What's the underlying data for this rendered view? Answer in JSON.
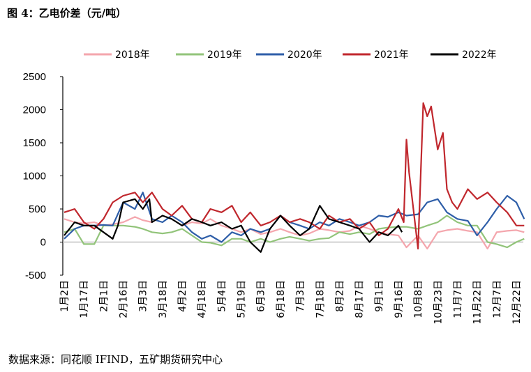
{
  "title": "图 4：乙电价差（元/吨）",
  "source": "数据来源：同花顺 IFIND，五矿期货研究中心",
  "chart_data": {
    "type": "line",
    "ylim": [
      -500,
      2500
    ],
    "yticks": [
      -500,
      0,
      500,
      1000,
      1500,
      2000,
      2500
    ],
    "categories": [
      "1月2日",
      "1月17日",
      "2月1日",
      "2月16日",
      "3月3日",
      "3月18日",
      "4月2日",
      "4月18日",
      "5月4日",
      "5月19日",
      "6月3日",
      "6月18日",
      "7月3日",
      "7月18日",
      "8月2日",
      "8月17日",
      "9月1日",
      "9月16日",
      "10月8日",
      "10月23日",
      "11月7日",
      "11月22日",
      "12月7日",
      "12月22日"
    ],
    "legend": "top",
    "series": [
      {
        "name": "2018年",
        "color": "#f4a6ad",
        "x": [
          "1月2日",
          "1月10日",
          "1月17日",
          "1月25日",
          "2月1日",
          "2月8日",
          "2月16日",
          "2月25日",
          "3月3日",
          "3月10日",
          "3月18日",
          "3月25日",
          "4月2日",
          "4月10日",
          "4月18日",
          "4月25日",
          "5月4日",
          "5月12日",
          "5月19日",
          "5月26日",
          "6月3日",
          "6月10日",
          "6月18日",
          "6月25日",
          "7月3日",
          "7月10日",
          "7月18日",
          "7月25日",
          "8月2日",
          "8月10日",
          "8月17日",
          "8月25日",
          "9月1日",
          "9月8日",
          "9月16日",
          "9月25日",
          "10月8日",
          "10月15日",
          "10月23日",
          "10月30日",
          "11月7日",
          "11月15日",
          "11月22日",
          "11月30日",
          "12月7日",
          "12月15日",
          "12月22日",
          "12月28日"
        ],
        "values": [
          350,
          300,
          280,
          300,
          250,
          270,
          300,
          380,
          330,
          300,
          400,
          350,
          250,
          300,
          280,
          350,
          250,
          200,
          150,
          200,
          120,
          150,
          200,
          150,
          100,
          130,
          200,
          180,
          150,
          170,
          250,
          200,
          150,
          120,
          100,
          -80,
          100,
          -100,
          150,
          180,
          200,
          170,
          150,
          -100,
          150,
          170,
          180,
          150
        ]
      },
      {
        "name": "2019年",
        "color": "#92c47a",
        "x": [
          "1月2日",
          "1月10日",
          "1月17日",
          "1月25日",
          "2月1日",
          "2月8日",
          "2月16日",
          "2月25日",
          "3月3日",
          "3月10日",
          "3月18日",
          "3月25日",
          "4月2日",
          "4月10日",
          "4月18日",
          "4月25日",
          "5月4日",
          "5月12日",
          "5月19日",
          "5月26日",
          "6月3日",
          "6月10日",
          "6月18日",
          "6月25日",
          "7月3日",
          "7月10日",
          "7月18日",
          "7月25日",
          "8月2日",
          "8月10日",
          "8月17日",
          "8月25日",
          "9月1日",
          "9月8日",
          "9月16日",
          "9月25日",
          "10月8日",
          "10月15日",
          "10月23日",
          "10月30日",
          "11月7日",
          "11月15日",
          "11月22日",
          "11月30日",
          "12月7日",
          "12月15日",
          "12月22日",
          "12月28日"
        ],
        "values": [
          150,
          200,
          -30,
          -30,
          250,
          250,
          250,
          230,
          200,
          150,
          130,
          150,
          200,
          100,
          0,
          -10,
          -50,
          50,
          50,
          0,
          50,
          0,
          50,
          80,
          50,
          20,
          50,
          60,
          150,
          120,
          150,
          120,
          200,
          220,
          230,
          230,
          200,
          250,
          300,
          400,
          300,
          250,
          250,
          0,
          -30,
          -80,
          0,
          50
        ]
      },
      {
        "name": "2020年",
        "color": "#2e5ea8",
        "x": [
          "1月2日",
          "1月10日",
          "1月17日",
          "1月25日",
          "2月1日",
          "2月8日",
          "2月16日",
          "2月25日",
          "3月3日",
          "3月10日",
          "3月18日",
          "3月25日",
          "4月2日",
          "4月10日",
          "4月18日",
          "4月25日",
          "5月4日",
          "5月12日",
          "5月19日",
          "5月26日",
          "6月3日",
          "6月10日",
          "6月18日",
          "6月25日",
          "7月3日",
          "7月10日",
          "7月18日",
          "7月25日",
          "8月2日",
          "8月10日",
          "8月17日",
          "8月25日",
          "9月1日",
          "9月8日",
          "9月16日",
          "9月25日",
          "10月8日",
          "10月15日",
          "10月23日",
          "10月30日",
          "11月7日",
          "11月15日",
          "11月22日",
          "11月30日",
          "12月7日",
          "12月15日",
          "12月22日",
          "12月28日"
        ],
        "values": [
          50,
          200,
          250,
          250,
          260,
          250,
          600,
          500,
          750,
          350,
          300,
          400,
          300,
          150,
          50,
          100,
          0,
          150,
          100,
          200,
          150,
          200,
          400,
          300,
          250,
          200,
          300,
          250,
          350,
          300,
          250,
          300,
          400,
          380,
          450,
          400,
          420,
          600,
          650,
          450,
          350,
          320,
          100,
          300,
          500,
          700,
          600,
          350
        ]
      },
      {
        "name": "2021年",
        "color": "#c0272d",
        "x": [
          "1月2日",
          "1月10日",
          "1月17日",
          "1月25日",
          "2月1日",
          "2月8日",
          "2月16日",
          "2月25日",
          "3月3日",
          "3月10日",
          "3月18日",
          "3月25日",
          "4月2日",
          "4月10日",
          "4月18日",
          "4月25日",
          "5月4日",
          "5月12日",
          "5月19日",
          "5月26日",
          "6月3日",
          "6月10日",
          "6月18日",
          "6月25日",
          "7月3日",
          "7月10日",
          "7月18日",
          "7月25日",
          "8月2日",
          "8月10日",
          "8月17日",
          "8月25日",
          "9月1日",
          "9月8日",
          "9月16日",
          "9月22日",
          "9月25日",
          "9月28日",
          "10月8日",
          "10月12日",
          "10月15日",
          "10月18日",
          "10月23日",
          "10月27日",
          "10月30日",
          "11月3日",
          "11月7日",
          "11月15日",
          "11月22日",
          "11月30日",
          "12月7日",
          "12月15日",
          "12月22日",
          "12月28日"
        ],
        "values": [
          450,
          500,
          300,
          200,
          350,
          600,
          700,
          750,
          600,
          750,
          500,
          400,
          550,
          350,
          300,
          500,
          450,
          550,
          300,
          450,
          250,
          300,
          400,
          300,
          350,
          300,
          200,
          400,
          300,
          350,
          200,
          300,
          100,
          200,
          500,
          300,
          1550,
          1050,
          -100,
          2100,
          1900,
          2050,
          1400,
          1650,
          800,
          600,
          500,
          800,
          650,
          750,
          600,
          450,
          250,
          250
        ]
      },
      {
        "name": "2022年",
        "color": "#000000",
        "x": [
          "1月2日",
          "1月10日",
          "1月17日",
          "1月25日",
          "2月1日",
          "2月8日",
          "2月12日",
          "2月16日",
          "2月25日",
          "3月3日",
          "3月8日",
          "3月10日",
          "3月18日",
          "3月25日",
          "4月2日",
          "4月10日",
          "4月18日",
          "4月25日",
          "5月4日",
          "5月12日",
          "5月19日",
          "5月26日",
          "6月3日",
          "6月10日",
          "6月18日",
          "6月25日",
          "7月3日",
          "7月10日",
          "7月18日",
          "7月25日",
          "8月2日",
          "8月10日",
          "8月17日",
          "8月25日",
          "9月1日",
          "9月8日",
          "9月16日",
          "9月20日"
        ],
        "values": [
          100,
          300,
          250,
          250,
          150,
          50,
          250,
          600,
          650,
          500,
          650,
          300,
          400,
          350,
          250,
          350,
          300,
          250,
          300,
          200,
          250,
          0,
          -150,
          200,
          400,
          250,
          100,
          200,
          550,
          350,
          300,
          250,
          200,
          0,
          150,
          100,
          250,
          150
        ]
      }
    ]
  }
}
